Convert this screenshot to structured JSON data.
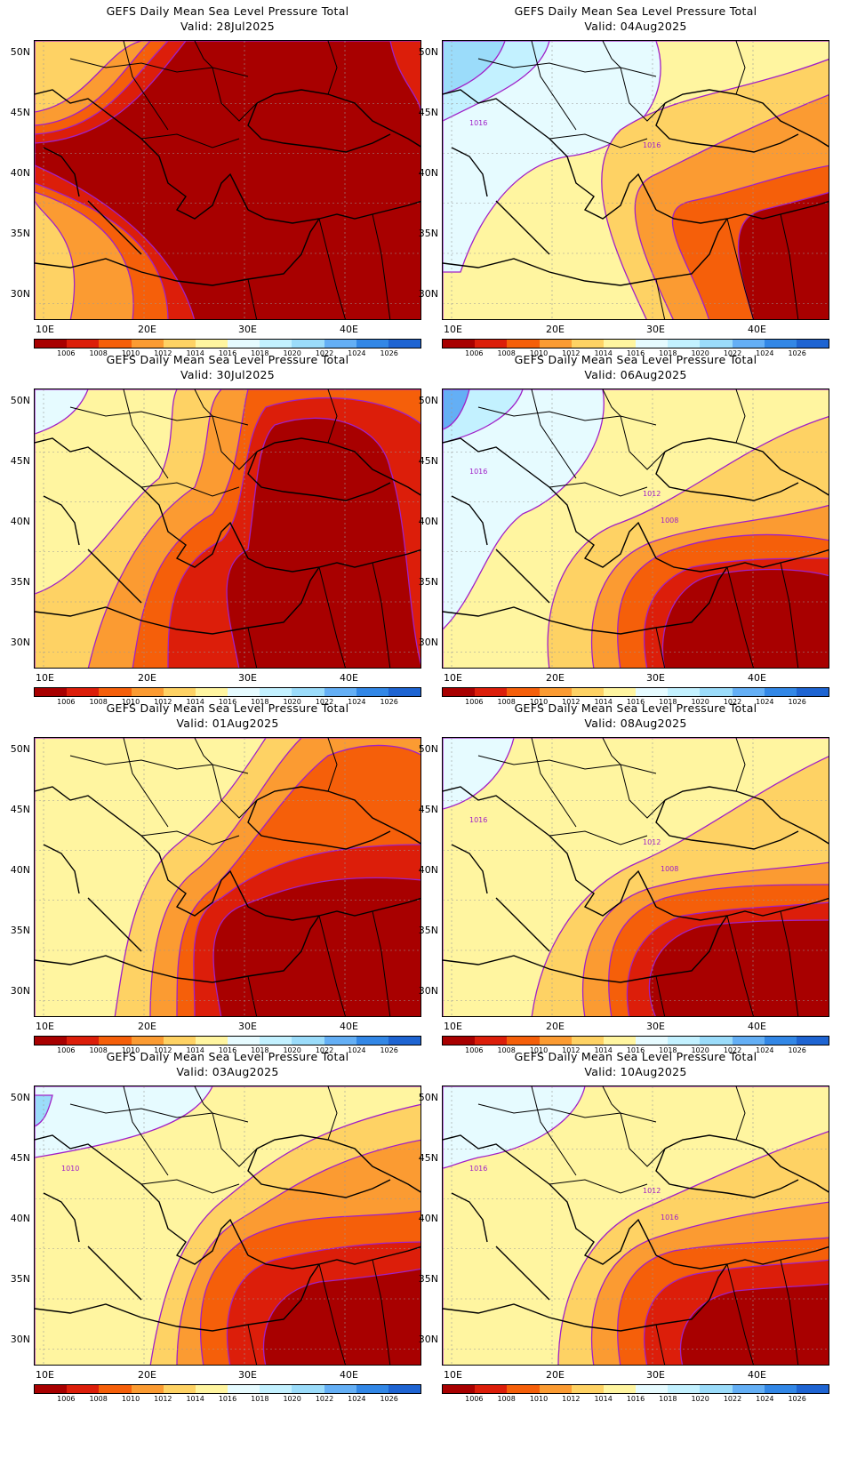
{
  "figure_title": "GEFS Daily Mean Sea Level Pressure Total",
  "valid_prefix": "Valid:",
  "lat_labels": [
    "50N",
    "45N",
    "40N",
    "35N",
    "30N"
  ],
  "lon_labels": [
    "10E",
    "20E",
    "30E",
    "40E"
  ],
  "colorbar": {
    "levels": [
      "1006",
      "1008",
      "1010",
      "1012",
      "1014",
      "1016",
      "1018",
      "1020",
      "1022",
      "1024",
      "1026"
    ],
    "colors": [
      "#a80000",
      "#dc1e0a",
      "#f55f0a",
      "#fb9b32",
      "#fed264",
      "#fff5a0",
      "#e6fbff",
      "#c3f1ff",
      "#9bdcfa",
      "#64aff5",
      "#3287e6",
      "#1e64d2"
    ]
  },
  "panels": [
    {
      "date": "28Jul2025",
      "hint": "deep-low"
    },
    {
      "date": "04Aug2025",
      "hint": "high-nw"
    },
    {
      "date": "30Jul2025",
      "hint": "low-east"
    },
    {
      "date": "06Aug2025",
      "hint": "high-nw2"
    },
    {
      "date": "01Aug2025",
      "hint": "low-se"
    },
    {
      "date": "08Aug2025",
      "hint": "moderate"
    },
    {
      "date": "03Aug2025",
      "hint": "low-se2"
    },
    {
      "date": "10Aug2025",
      "hint": "moderate2"
    }
  ],
  "contour_labels": {
    "04Aug2025": [
      "1016",
      "1016"
    ],
    "06Aug2025": [
      "1016",
      "1012",
      "1008"
    ],
    "08Aug2025": [
      "1016",
      "1012",
      "1008"
    ],
    "03Aug2025": [
      "1010"
    ],
    "10Aug2025": [
      "1016",
      "1012",
      "1016"
    ]
  }
}
